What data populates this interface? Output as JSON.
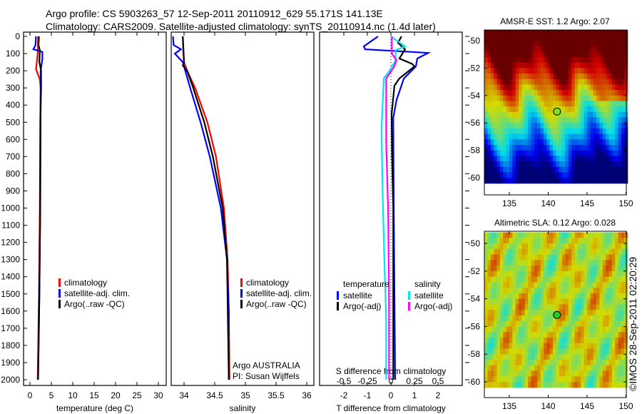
{
  "title": {
    "line1": "Argo profile: CS 5903263_57 12-Sep-2011 20110912_629 55.171S 141.13E",
    "line2": "Climatology: CARS2009. Satellite-adjusted climatology: synTS_20110914.nc (1.4d later)"
  },
  "credit": "©IMOS 28-Sep-2011 02:20:29",
  "colors": {
    "climatology": "#ff0000",
    "satellite": "#0000ff",
    "argo": "#000000",
    "s_satellite": "#00e5ee",
    "s_argo": "#ff00ff"
  },
  "chart_data": [
    {
      "type": "line",
      "name": "temperature",
      "xlabel": "temperature (deg C)",
      "ylabel": "",
      "xlim": [
        -1.5,
        31.8
      ],
      "ylim": [
        2035,
        -25
      ],
      "xticks": [
        0,
        5,
        10,
        15,
        20,
        25,
        30
      ],
      "yticks": [
        0,
        100,
        200,
        300,
        400,
        500,
        600,
        700,
        800,
        900,
        1000,
        1100,
        1200,
        1300,
        1400,
        1500,
        1600,
        1700,
        1800,
        1900,
        2000
      ],
      "legend": [
        "climatology",
        "satellite-adj. clim.",
        "Argo(..raw -QC)"
      ],
      "series": [
        {
          "name": "climatology",
          "color": "#ff0000",
          "points": [
            [
              1.9,
              0
            ],
            [
              1.8,
              100
            ],
            [
              1.6,
              150
            ],
            [
              1.4,
              190
            ],
            [
              2.3,
              250
            ],
            [
              2.5,
              300
            ],
            [
              2.4,
              500
            ],
            [
              2.3,
              1000
            ],
            [
              2.1,
              1500
            ],
            [
              1.8,
              2000
            ]
          ]
        },
        {
          "name": "satellite-adj. clim.",
          "color": "#0000ff",
          "points": [
            [
              1.4,
              0
            ],
            [
              1.3,
              50
            ],
            [
              0.8,
              75
            ],
            [
              2.9,
              90
            ],
            [
              2.9,
              130
            ],
            [
              2.5,
              200
            ],
            [
              2.5,
              300
            ],
            [
              2.4,
              1000
            ],
            [
              2.2,
              1500
            ],
            [
              1.9,
              2000
            ]
          ]
        },
        {
          "name": "Argo(..raw -QC)",
          "color": "#000000",
          "points": [
            [
              2.1,
              0
            ],
            [
              2.0,
              50
            ],
            [
              2.3,
              80
            ],
            [
              2.2,
              150
            ],
            [
              2.6,
              200
            ],
            [
              2.6,
              300
            ],
            [
              2.45,
              500
            ],
            [
              2.4,
              1000
            ],
            [
              2.2,
              1500
            ],
            [
              1.9,
              2000
            ]
          ]
        }
      ]
    },
    {
      "type": "line",
      "name": "salinity",
      "xlabel": "salinity",
      "xlim": [
        33.79,
        36.1
      ],
      "ylim": [
        2035,
        -25
      ],
      "xticks": [
        34,
        34.5,
        35,
        35.5,
        36
      ],
      "xticklabels": [
        "34",
        "34.5",
        "35",
        "35.5",
        "36"
      ],
      "legend": [
        "climatology",
        "satellite-adj. clim.",
        "Argo(..raw -QC)"
      ],
      "annotation": [
        "Argo AUSTRALIA",
        "PI: Susan Wijffels"
      ],
      "series": [
        {
          "name": "climatology",
          "color": "#ff0000",
          "points": [
            [
              33.98,
              0
            ],
            [
              33.99,
              100
            ],
            [
              34.0,
              150
            ],
            [
              34.05,
              200
            ],
            [
              34.18,
              300
            ],
            [
              34.38,
              500
            ],
            [
              34.52,
              700
            ],
            [
              34.65,
              1000
            ],
            [
              34.71,
              1300
            ],
            [
              34.73,
              1600
            ],
            [
              34.74,
              2000
            ]
          ]
        },
        {
          "name": "satellite-adj. clim.",
          "color": "#0000ff",
          "points": [
            [
              33.82,
              0
            ],
            [
              33.83,
              50
            ],
            [
              33.95,
              75
            ],
            [
              33.85,
              100
            ],
            [
              33.98,
              150
            ],
            [
              34.02,
              200
            ],
            [
              34.1,
              300
            ],
            [
              34.27,
              500
            ],
            [
              34.42,
              700
            ],
            [
              34.6,
              1000
            ],
            [
              34.7,
              1300
            ],
            [
              34.73,
              1600
            ],
            [
              34.73,
              2000
            ]
          ]
        },
        {
          "name": "Argo(..raw -QC)",
          "color": "#000000",
          "points": [
            [
              33.98,
              0
            ],
            [
              34.0,
              150
            ],
            [
              33.98,
              170
            ],
            [
              34.05,
              200
            ],
            [
              34.15,
              300
            ],
            [
              34.33,
              500
            ],
            [
              34.47,
              700
            ],
            [
              34.63,
              1000
            ],
            [
              34.7,
              1300
            ],
            [
              34.73,
              2000
            ]
          ]
        }
      ]
    },
    {
      "type": "line",
      "name": "difference",
      "xlabel": "T difference from climatology",
      "x2label": "S difference from climatology",
      "xlim": [
        -3.06,
        3.03
      ],
      "ylim": [
        2035,
        -25
      ],
      "xticks": [
        -2,
        -1,
        0,
        1,
        2
      ],
      "x2ticks": [
        -0.5,
        -0.25,
        0,
        0.25,
        0.5
      ],
      "legend_headers": [
        "temperature",
        "salinity"
      ],
      "legend": [
        "satellite",
        "Argo(-adj)",
        "satellite",
        "Argo(-adj)"
      ],
      "series": [
        {
          "name": "temperature satellite",
          "axis": "T",
          "color": "#0000ff",
          "points": [
            [
              -0.55,
              0
            ],
            [
              -1.15,
              58
            ],
            [
              -1.1,
              75
            ],
            [
              1.58,
              96
            ],
            [
              1.12,
              129
            ],
            [
              1.06,
              175
            ],
            [
              0.55,
              245
            ],
            [
              0.24,
              370
            ],
            [
              0.1,
              474
            ],
            [
              0.12,
              1000
            ],
            [
              0.15,
              1500
            ],
            [
              0.18,
              2000
            ]
          ]
        },
        {
          "name": "temperature Argo(-adj)",
          "axis": "T",
          "color": "#000000",
          "points": [
            [
              0.45,
              0
            ],
            [
              0.3,
              37
            ],
            [
              0.6,
              75
            ],
            [
              0.36,
              129
            ],
            [
              0.9,
              160
            ],
            [
              1.0,
              175
            ],
            [
              0.36,
              245
            ],
            [
              0.15,
              287
            ],
            [
              0.03,
              453
            ],
            [
              0.05,
              700
            ],
            [
              0.1,
              1000
            ],
            [
              0.1,
              1500
            ],
            [
              0.1,
              2000
            ]
          ]
        },
        {
          "name": "salinity satellite",
          "axis": "S",
          "color": "#00e5ee",
          "points": [
            [
              0,
              0
            ],
            [
              0.15,
              58
            ],
            [
              0.05,
              80
            ],
            [
              0.05,
              140
            ],
            [
              -0.02,
              204
            ],
            [
              -0.075,
              245
            ],
            [
              -0.1,
              536
            ],
            [
              -0.09,
              869
            ],
            [
              -0.07,
              1300
            ],
            [
              -0.05,
              1650
            ],
            [
              -0.05,
              2000
            ]
          ]
        },
        {
          "name": "salinity Argo(-adj)",
          "axis": "S",
          "color": "#ff00ff",
          "points": [
            [
              0.01,
              0
            ],
            [
              0.01,
              100
            ],
            [
              0.06,
              140
            ],
            [
              0.03,
              180
            ],
            [
              -0.05,
              245
            ],
            [
              -0.05,
              620
            ],
            [
              -0.03,
              1000
            ],
            [
              -0.02,
              1500
            ],
            [
              -0.02,
              2000
            ]
          ]
        }
      ]
    },
    {
      "type": "heatmap",
      "name": "sst-map",
      "title": "AMSR-E SST: 1.2 Argo: 2.07",
      "xlim": [
        131.8,
        150.1
      ],
      "ylim": [
        -61.2,
        -49.2
      ],
      "xticks": [
        135,
        140,
        145,
        150
      ],
      "yticks": [
        -50,
        -52,
        -54,
        -56,
        -58,
        -60
      ],
      "marker": {
        "lon": 141.13,
        "lat": -55.17
      }
    },
    {
      "type": "heatmap",
      "name": "sla-map",
      "title": "Altimetric SLA: 0.12 Argo: 0.028",
      "xlim": [
        131.8,
        150.1
      ],
      "ylim": [
        -61.1,
        -49.1
      ],
      "xticks": [
        135,
        140,
        145,
        150
      ],
      "yticks": [
        -50,
        -52,
        -54,
        -56,
        -58,
        -60
      ],
      "marker": {
        "lon": 141.13,
        "lat": -55.17
      }
    }
  ]
}
